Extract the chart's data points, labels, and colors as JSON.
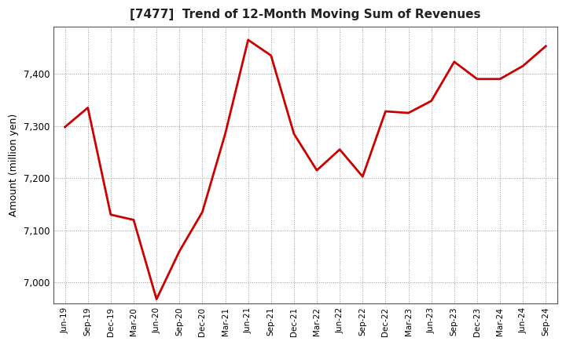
{
  "title": "[7477]  Trend of 12-Month Moving Sum of Revenues",
  "ylabel": "Amount (million yen)",
  "line_color": "#cc0000",
  "line_width": 2.0,
  "background_color": "#ffffff",
  "plot_bg_color": "#ffffff",
  "grid_color": "#999999",
  "ylim": [
    6960,
    7490
  ],
  "yticks": [
    7000,
    7100,
    7200,
    7300,
    7400
  ],
  "labels": [
    "Jun-19",
    "Sep-19",
    "Dec-19",
    "Mar-20",
    "Jun-20",
    "Sep-20",
    "Dec-20",
    "Mar-21",
    "Jun-21",
    "Sep-21",
    "Dec-21",
    "Mar-22",
    "Jun-22",
    "Sep-22",
    "Dec-22",
    "Mar-23",
    "Jun-23",
    "Sep-23",
    "Dec-23",
    "Mar-24",
    "Jun-24",
    "Sep-24"
  ],
  "values": [
    7298,
    7335,
    7130,
    7120,
    6968,
    7060,
    7135,
    7285,
    7465,
    7435,
    7285,
    7215,
    7255,
    7203,
    7328,
    7325,
    7348,
    7423,
    7390,
    7390,
    7415,
    7453
  ]
}
